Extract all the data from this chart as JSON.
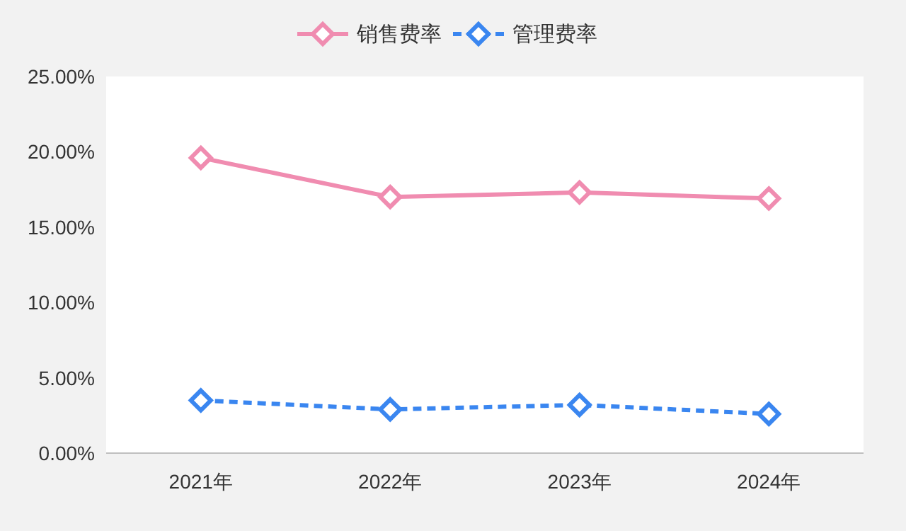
{
  "chart_data": {
    "type": "line",
    "categories": [
      "2021年",
      "2022年",
      "2023年",
      "2024年"
    ],
    "series": [
      {
        "name": "销售费率",
        "color": "#f08cb0",
        "values": [
          19.6,
          17.0,
          17.3,
          16.9
        ],
        "marker": "diamond",
        "line_style": "solid"
      },
      {
        "name": "管理费率",
        "color": "#3a86f0",
        "values": [
          3.5,
          2.9,
          3.2,
          2.6
        ],
        "marker": "diamond",
        "line_style": "dashed"
      }
    ],
    "ylim": [
      0,
      25
    ],
    "yticks": [
      {
        "value": 0,
        "label": "0.00%"
      },
      {
        "value": 5,
        "label": "5.00%"
      },
      {
        "value": 10,
        "label": "10.00%"
      },
      {
        "value": 15,
        "label": "15.00%"
      },
      {
        "value": 20,
        "label": "20.00%"
      },
      {
        "value": 25,
        "label": "25.00%"
      }
    ],
    "grid": false,
    "legend": "top"
  }
}
